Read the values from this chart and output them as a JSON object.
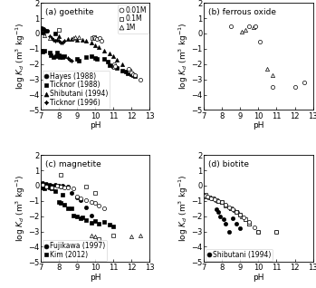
{
  "panels": {
    "a": {
      "title": "(a) goethite",
      "open_circle": [
        [
          10.0,
          -0.3
        ],
        [
          10.1,
          -0.35
        ],
        [
          10.25,
          -0.3
        ],
        [
          10.35,
          -0.5
        ],
        [
          11.05,
          -2.0
        ],
        [
          11.1,
          -2.15
        ],
        [
          11.85,
          -2.3
        ],
        [
          12.0,
          -2.55
        ],
        [
          12.1,
          -2.65
        ],
        [
          12.2,
          -2.75
        ],
        [
          12.5,
          -3.05
        ]
      ],
      "open_square": [
        [
          8.0,
          0.25
        ],
        [
          9.85,
          -0.3
        ],
        [
          9.95,
          -0.25
        ],
        [
          11.05,
          -2.2
        ],
        [
          11.9,
          -2.45
        ]
      ],
      "open_triangle": [
        [
          7.2,
          -0.1
        ],
        [
          7.5,
          -0.3
        ],
        [
          8.8,
          -0.3
        ],
        [
          8.9,
          -0.25
        ],
        [
          9.1,
          -0.25
        ]
      ],
      "filled_circle": [
        [
          7.05,
          0.35
        ],
        [
          7.15,
          0.3
        ],
        [
          7.25,
          0.2
        ],
        [
          7.35,
          0.15
        ]
      ],
      "filled_square": [
        [
          7.0,
          -1.15
        ],
        [
          7.1,
          -1.2
        ],
        [
          7.2,
          -1.1
        ],
        [
          7.5,
          -1.25
        ],
        [
          7.55,
          -1.45
        ],
        [
          7.7,
          -1.55
        ],
        [
          7.8,
          0.0
        ],
        [
          7.85,
          -1.5
        ],
        [
          7.9,
          -1.25
        ],
        [
          8.0,
          -1.45
        ],
        [
          8.05,
          -1.55
        ],
        [
          8.1,
          -1.5
        ],
        [
          8.2,
          -1.55
        ],
        [
          8.3,
          -1.5
        ],
        [
          9.0,
          -1.65
        ],
        [
          9.1,
          -1.75
        ],
        [
          9.5,
          -1.55
        ],
        [
          9.8,
          -1.5
        ],
        [
          10.0,
          -1.6
        ],
        [
          10.1,
          -1.65
        ],
        [
          10.5,
          -1.65
        ],
        [
          10.7,
          -1.85
        ],
        [
          10.8,
          -2.05
        ],
        [
          11.0,
          -2.15
        ],
        [
          11.2,
          -2.25
        ],
        [
          11.5,
          -2.45
        ],
        [
          11.7,
          -2.5
        ],
        [
          11.8,
          -2.6
        ],
        [
          12.0,
          -2.65
        ],
        [
          12.1,
          -2.7
        ],
        [
          12.2,
          -2.8
        ]
      ],
      "filled_triangle": [
        [
          7.05,
          0.1
        ],
        [
          7.15,
          0.05
        ],
        [
          8.0,
          -0.2
        ],
        [
          8.5,
          -0.35
        ],
        [
          8.7,
          -0.35
        ],
        [
          9.0,
          -0.4
        ],
        [
          9.3,
          -0.4
        ],
        [
          9.5,
          -0.5
        ],
        [
          9.8,
          -0.6
        ],
        [
          10.0,
          -0.8
        ],
        [
          10.2,
          -0.9
        ],
        [
          10.5,
          -1.1
        ],
        [
          10.8,
          -1.3
        ],
        [
          11.0,
          -1.5
        ],
        [
          11.2,
          -1.7
        ],
        [
          11.5,
          -2.0
        ]
      ],
      "filled_star": [
        [
          7.5,
          -0.2
        ],
        [
          7.6,
          -0.3
        ],
        [
          7.7,
          -0.4
        ],
        [
          7.8,
          -0.5
        ],
        [
          7.9,
          -0.4
        ],
        [
          8.0,
          -0.5
        ],
        [
          8.1,
          -0.6
        ],
        [
          8.2,
          -0.6
        ],
        [
          8.3,
          -0.5
        ],
        [
          8.5,
          -1.6
        ],
        [
          8.6,
          -1.7
        ],
        [
          8.7,
          -1.8
        ]
      ],
      "xlim": [
        7,
        13
      ],
      "ylim": [
        -5,
        2
      ]
    },
    "b": {
      "title": "(b) ferrous oxide",
      "open_circle": [
        [
          8.5,
          0.5
        ],
        [
          9.5,
          0.45
        ],
        [
          9.85,
          0.5
        ],
        [
          10.1,
          -0.55
        ],
        [
          10.8,
          -3.5
        ],
        [
          12.0,
          -3.5
        ],
        [
          12.5,
          -3.2
        ]
      ],
      "open_triangle": [
        [
          9.1,
          0.1
        ],
        [
          9.3,
          0.25
        ],
        [
          9.75,
          0.4
        ],
        [
          10.5,
          -2.3
        ],
        [
          10.8,
          -2.7
        ]
      ],
      "xlim": [
        7,
        13
      ],
      "ylim": [
        -5,
        2
      ]
    },
    "c": {
      "title": "(c) magnetite",
      "open_circle": [
        [
          7.1,
          0.05
        ],
        [
          7.3,
          -0.05
        ],
        [
          7.6,
          -0.1
        ],
        [
          7.9,
          0.0
        ],
        [
          8.1,
          -0.05
        ],
        [
          8.3,
          -0.1
        ],
        [
          8.5,
          -0.15
        ],
        [
          8.8,
          -0.2
        ],
        [
          9.0,
          -0.7
        ],
        [
          9.2,
          -0.85
        ],
        [
          9.5,
          -0.95
        ],
        [
          9.8,
          -1.05
        ],
        [
          10.0,
          -1.15
        ],
        [
          10.2,
          -1.3
        ],
        [
          10.5,
          -1.5
        ]
      ],
      "open_square": [
        [
          8.1,
          0.7
        ],
        [
          9.5,
          -0.05
        ],
        [
          10.0,
          -0.45
        ],
        [
          10.2,
          -3.5
        ],
        [
          11.0,
          -3.25
        ]
      ],
      "open_triangle": [
        [
          9.8,
          -3.25
        ],
        [
          10.0,
          -3.3
        ],
        [
          12.0,
          -3.3
        ],
        [
          12.5,
          -3.25
        ]
      ],
      "filled_circle": [
        [
          7.0,
          0.1
        ],
        [
          7.1,
          0.15
        ],
        [
          7.2,
          0.05
        ],
        [
          7.3,
          0.1
        ],
        [
          7.5,
          0.05
        ],
        [
          7.6,
          0.0
        ],
        [
          7.8,
          0.05
        ],
        [
          8.0,
          0.0
        ],
        [
          8.1,
          -0.05
        ],
        [
          8.2,
          0.0
        ],
        [
          8.5,
          -0.05
        ],
        [
          8.7,
          -0.45
        ],
        [
          9.0,
          -0.75
        ],
        [
          9.2,
          -0.95
        ],
        [
          9.5,
          -1.45
        ],
        [
          9.8,
          -1.95
        ]
      ],
      "filled_square": [
        [
          7.05,
          -0.05
        ],
        [
          7.1,
          -0.15
        ],
        [
          7.2,
          -0.2
        ],
        [
          7.3,
          -0.05
        ],
        [
          7.5,
          -0.1
        ],
        [
          7.6,
          -0.2
        ],
        [
          7.8,
          -0.35
        ],
        [
          8.0,
          -1.05
        ],
        [
          8.1,
          -1.15
        ],
        [
          8.2,
          -0.6
        ],
        [
          8.3,
          -1.25
        ],
        [
          8.5,
          -1.5
        ],
        [
          8.7,
          -1.5
        ],
        [
          8.8,
          -1.95
        ],
        [
          9.0,
          -2.0
        ],
        [
          9.2,
          -2.15
        ],
        [
          9.3,
          -2.05
        ],
        [
          9.5,
          -2.25
        ],
        [
          9.8,
          -2.45
        ],
        [
          10.0,
          -2.3
        ],
        [
          10.2,
          -2.5
        ],
        [
          10.5,
          -2.4
        ],
        [
          10.8,
          -2.55
        ],
        [
          11.0,
          -2.65
        ]
      ],
      "xlim": [
        7,
        13
      ],
      "ylim": [
        -5,
        2
      ]
    },
    "d": {
      "title": "(d) biotite",
      "open_circle": [
        [
          7.05,
          -0.65
        ],
        [
          7.2,
          -0.7
        ],
        [
          7.4,
          -0.85
        ],
        [
          7.6,
          -0.9
        ],
        [
          7.8,
          -1.0
        ],
        [
          8.0,
          -1.1
        ],
        [
          8.2,
          -1.25
        ],
        [
          8.4,
          -1.4
        ],
        [
          8.6,
          -1.55
        ],
        [
          8.8,
          -1.7
        ],
        [
          9.0,
          -1.9
        ],
        [
          9.2,
          -2.1
        ],
        [
          9.5,
          -2.4
        ],
        [
          9.8,
          -2.7
        ],
        [
          10.0,
          -3.0
        ]
      ],
      "open_square": [
        [
          7.1,
          -0.6
        ],
        [
          7.3,
          -0.75
        ],
        [
          7.5,
          -0.85
        ],
        [
          7.7,
          -0.95
        ],
        [
          8.0,
          -1.1
        ],
        [
          8.2,
          -1.3
        ],
        [
          8.5,
          -1.5
        ],
        [
          8.8,
          -1.7
        ],
        [
          9.0,
          -1.9
        ],
        [
          9.3,
          -2.2
        ],
        [
          9.5,
          -2.5
        ],
        [
          10.0,
          -3.05
        ],
        [
          11.0,
          -3.0
        ]
      ],
      "open_triangle": [
        [
          7.0,
          -0.6
        ],
        [
          7.15,
          -0.7
        ],
        [
          7.4,
          -0.8
        ],
        [
          7.6,
          -0.85
        ],
        [
          7.8,
          -1.0
        ],
        [
          8.0,
          -1.1
        ],
        [
          8.2,
          -1.25
        ],
        [
          8.5,
          -1.5
        ],
        [
          8.7,
          -1.6
        ],
        [
          8.9,
          -1.75
        ],
        [
          9.1,
          -2.0
        ],
        [
          9.3,
          -2.2
        ],
        [
          9.5,
          -2.5
        ]
      ],
      "filled_circle": [
        [
          7.7,
          -1.55
        ],
        [
          7.8,
          -1.75
        ],
        [
          7.9,
          -2.0
        ],
        [
          8.1,
          -2.2
        ],
        [
          8.2,
          -2.5
        ],
        [
          8.4,
          -3.0
        ],
        [
          8.6,
          -2.15
        ],
        [
          8.8,
          -2.5
        ],
        [
          9.0,
          -2.8
        ],
        [
          11.0,
          -3.0
        ]
      ],
      "xlim": [
        7,
        13
      ],
      "ylim": [
        -5,
        2
      ]
    }
  },
  "ylabel": "log $\\mathit{K_d}$ (m$^3$ kg$^{-1}$)",
  "xlabel": "pH",
  "marker_size": 3.0,
  "font_size": 6.5,
  "tick_font_size": 6.0
}
